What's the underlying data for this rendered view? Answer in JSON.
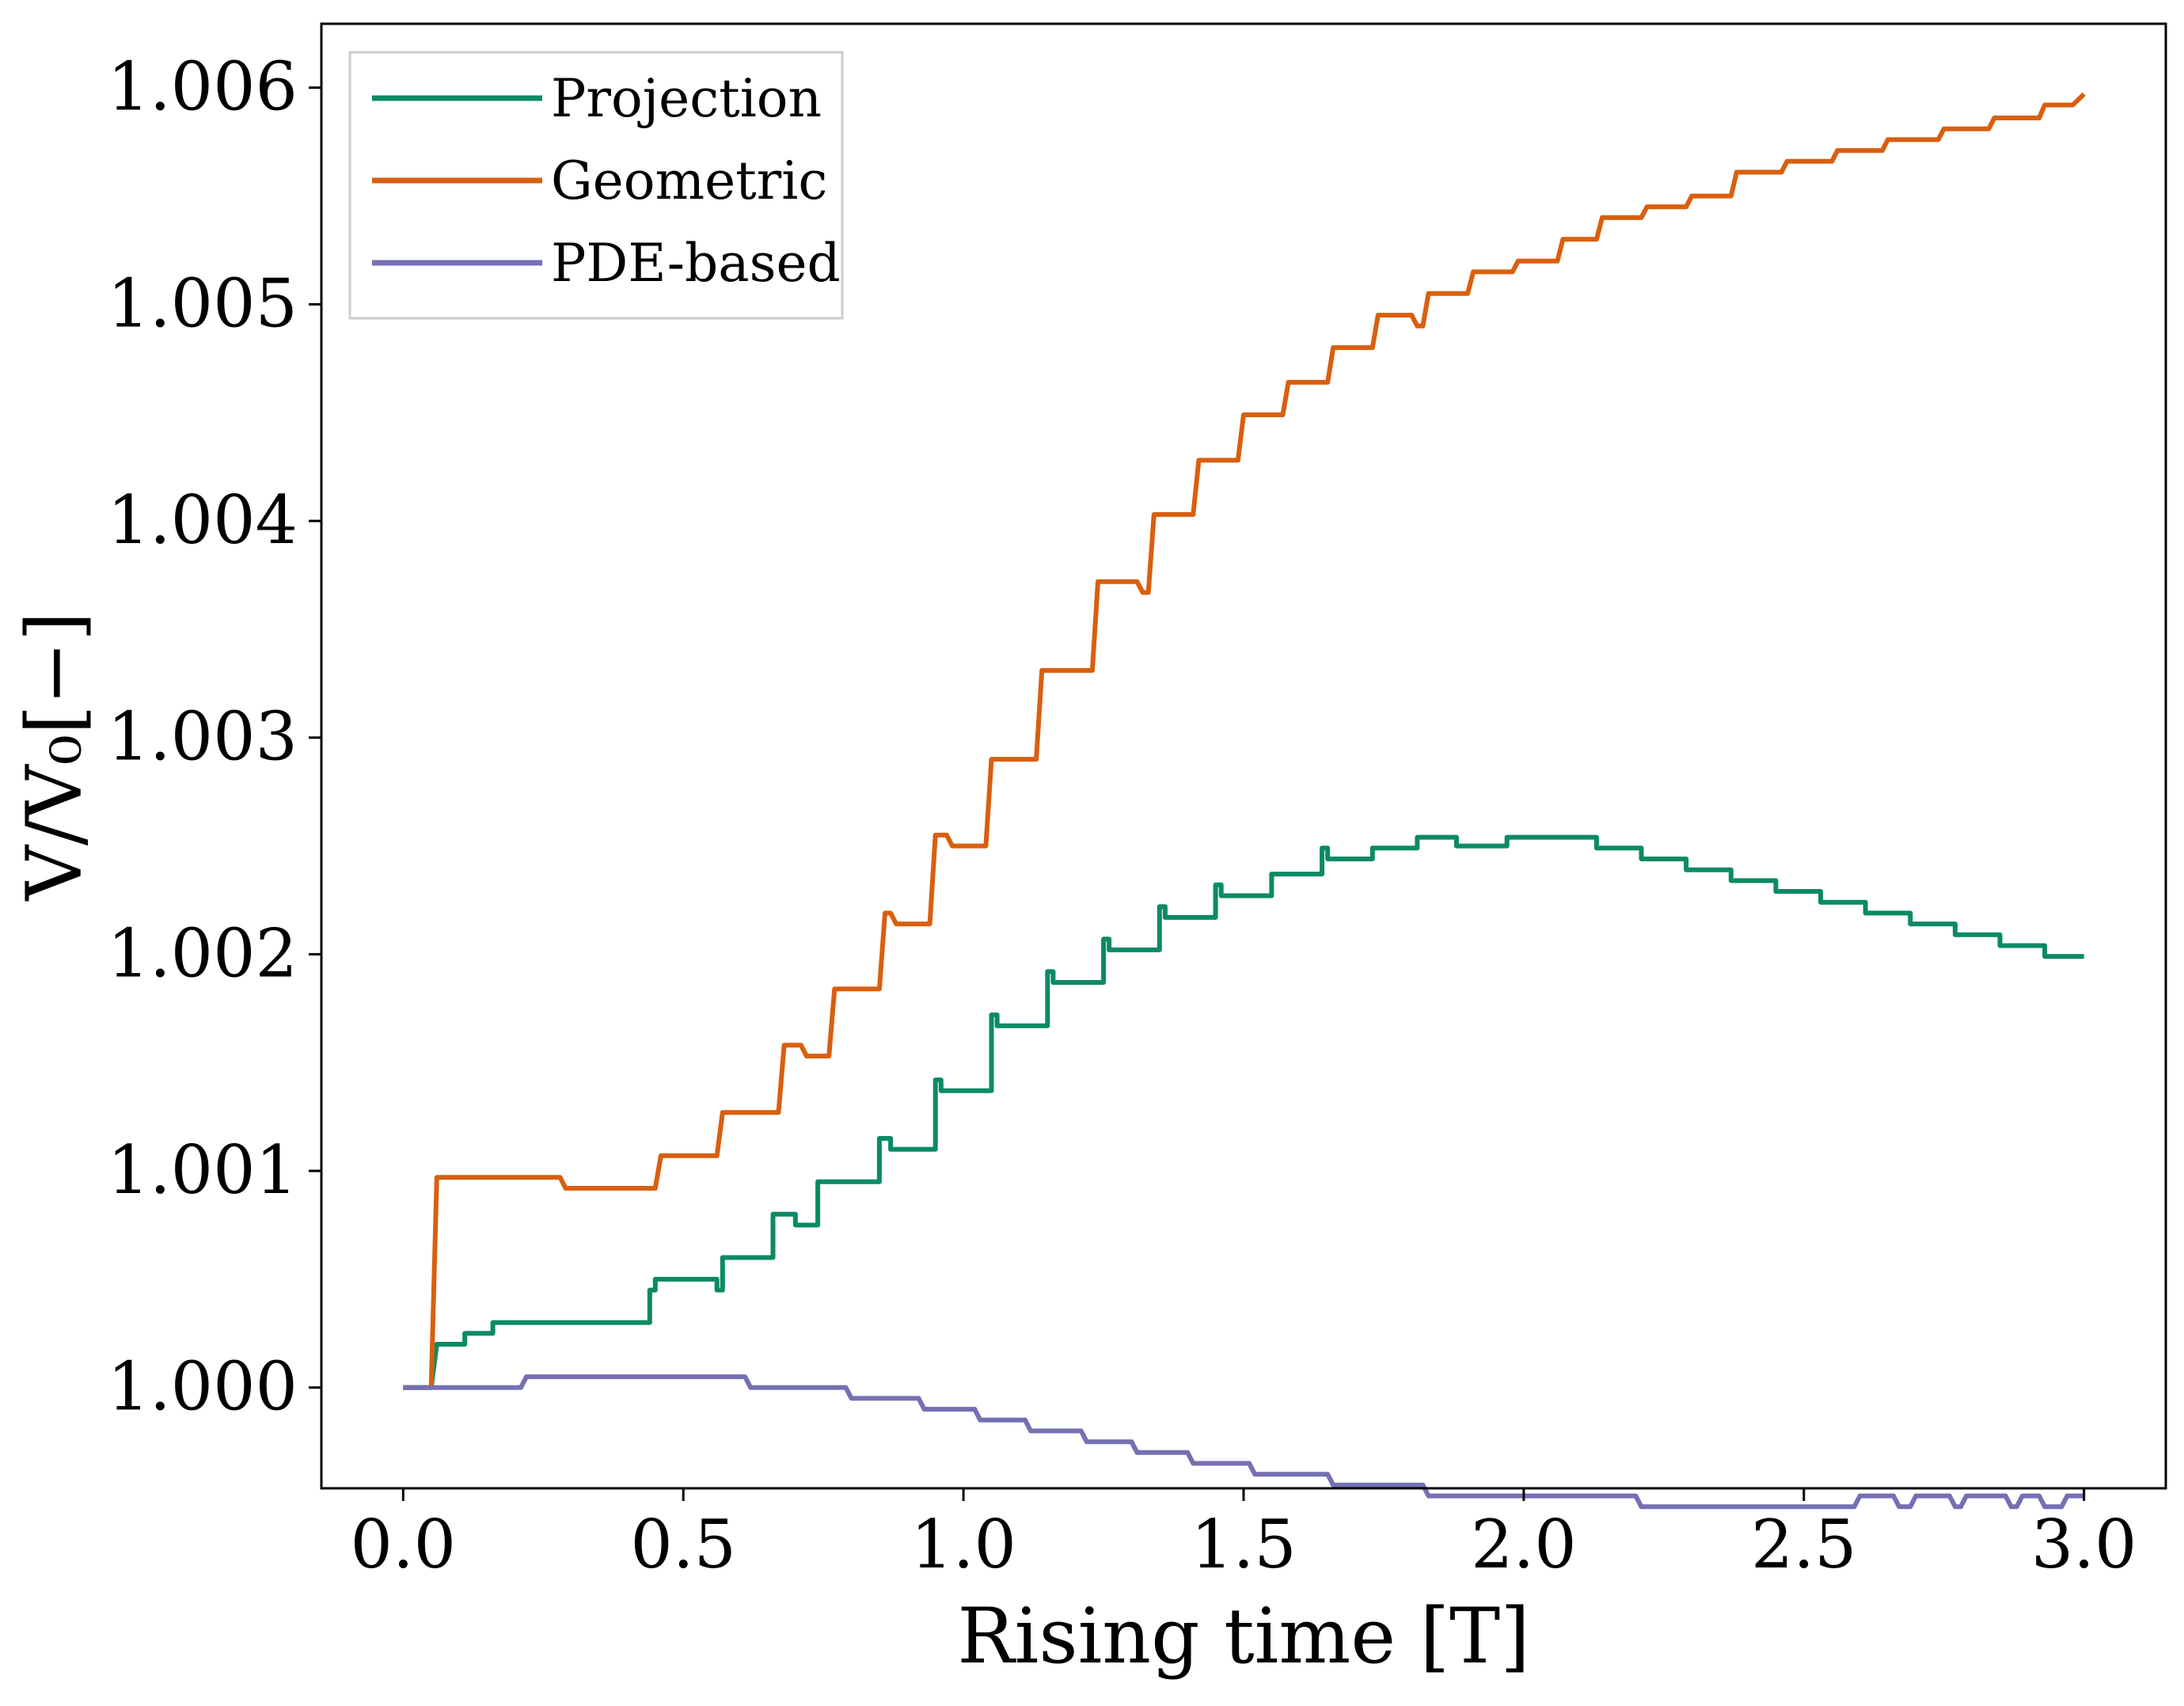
{
  "chart_data": {
    "type": "line",
    "title": "",
    "xlabel": "Rising time [T]",
    "ylabel": "V/V₀[−]",
    "xlim": [
      -0.146,
      3.146
    ],
    "ylim": [
      0.999535,
      1.006295
    ],
    "xticks": [
      0.0,
      0.5,
      1.0,
      1.5,
      2.0,
      2.5,
      3.0
    ],
    "xtick_labels": [
      "0.0",
      "0.5",
      "1.0",
      "1.5",
      "2.0",
      "2.5",
      "3.0"
    ],
    "yticks": [
      1.0,
      1.001,
      1.002,
      1.003,
      1.004,
      1.005,
      1.006
    ],
    "ytick_labels": [
      "1.000",
      "1.001",
      "1.002",
      "1.003",
      "1.004",
      "1.005",
      "1.006"
    ],
    "grid": false,
    "legend_position": "top-left",
    "series": [
      {
        "name": "Projection",
        "color": "#0b8a65",
        "x": [
          0.0,
          0.05,
          0.06,
          0.06,
          0.11,
          0.11,
          0.16,
          0.16,
          0.22,
          0.22,
          0.28,
          0.28,
          0.44,
          0.44,
          0.45,
          0.45,
          0.56,
          0.56,
          0.57,
          0.57,
          0.66,
          0.66,
          0.7,
          0.7,
          0.74,
          0.74,
          0.78,
          0.78,
          0.85,
          0.85,
          0.87,
          0.87,
          0.95,
          0.95,
          0.96,
          0.96,
          1.05,
          1.05,
          1.06,
          1.06,
          1.15,
          1.15,
          1.16,
          1.16,
          1.25,
          1.25,
          1.26,
          1.26,
          1.35,
          1.35,
          1.36,
          1.36,
          1.45,
          1.45,
          1.46,
          1.46,
          1.55,
          1.55,
          1.56,
          1.56,
          1.64,
          1.64,
          1.65,
          1.65,
          1.73,
          1.73,
          1.81,
          1.81,
          1.88,
          1.88,
          1.97,
          1.97,
          2.06,
          2.06,
          2.13,
          2.13,
          2.21,
          2.21,
          2.29,
          2.29,
          2.37,
          2.37,
          2.45,
          2.45,
          2.53,
          2.53,
          2.61,
          2.61,
          2.69,
          2.69,
          2.77,
          2.77,
          2.85,
          2.85,
          2.93,
          2.93,
          3.0
        ],
        "y": [
          1.0,
          1.0,
          1.0002,
          1.0002,
          1.0002,
          1.00025,
          1.00025,
          1.0003,
          1.0003,
          1.0003,
          1.0003,
          1.0003,
          1.0003,
          1.00045,
          1.00045,
          1.0005,
          1.0005,
          1.00045,
          1.00045,
          1.0006,
          1.0006,
          1.0008,
          1.0008,
          1.00075,
          1.00075,
          1.00095,
          1.00095,
          1.00095,
          1.00095,
          1.00115,
          1.00115,
          1.0011,
          1.0011,
          1.00142,
          1.00142,
          1.00137,
          1.00137,
          1.00172,
          1.00172,
          1.00167,
          1.00167,
          1.00192,
          1.00192,
          1.00187,
          1.00187,
          1.00207,
          1.00207,
          1.00202,
          1.00202,
          1.00222,
          1.00222,
          1.00217,
          1.00217,
          1.00232,
          1.00232,
          1.00227,
          1.00227,
          1.00237,
          1.00237,
          1.00237,
          1.00237,
          1.00249,
          1.00249,
          1.00244,
          1.00244,
          1.00249,
          1.00249,
          1.00254,
          1.00254,
          1.0025,
          1.0025,
          1.00254,
          1.00254,
          1.00254,
          1.00254,
          1.00249,
          1.00249,
          1.00244,
          1.00244,
          1.00239,
          1.00239,
          1.00234,
          1.00234,
          1.00229,
          1.00229,
          1.00224,
          1.00224,
          1.00219,
          1.00219,
          1.00214,
          1.00214,
          1.00209,
          1.00209,
          1.00204,
          1.00204,
          1.00199,
          1.00199
        ]
      },
      {
        "name": "Geometric",
        "color": "#d95f0e",
        "x": [
          0.0,
          0.05,
          0.06,
          0.28,
          0.29,
          0.45,
          0.46,
          0.56,
          0.57,
          0.67,
          0.68,
          0.71,
          0.72,
          0.76,
          0.77,
          0.85,
          0.86,
          0.87,
          0.88,
          0.94,
          0.95,
          0.97,
          0.98,
          1.04,
          1.05,
          1.13,
          1.14,
          1.23,
          1.24,
          1.31,
          1.32,
          1.33,
          1.34,
          1.41,
          1.42,
          1.49,
          1.5,
          1.57,
          1.58,
          1.65,
          1.66,
          1.73,
          1.74,
          1.8,
          1.81,
          1.82,
          1.83,
          1.9,
          1.91,
          1.98,
          1.99,
          2.06,
          2.07,
          2.13,
          2.14,
          2.21,
          2.22,
          2.29,
          2.3,
          2.37,
          2.38,
          2.46,
          2.47,
          2.55,
          2.56,
          2.64,
          2.65,
          2.74,
          2.75,
          2.83,
          2.84,
          2.92,
          2.93,
          2.98,
          3.0
        ],
        "y": [
          1.0,
          1.0,
          1.00097,
          1.00097,
          1.00092,
          1.00092,
          1.00107,
          1.00107,
          1.00127,
          1.00127,
          1.00158,
          1.00158,
          1.00153,
          1.00153,
          1.00184,
          1.00184,
          1.00219,
          1.00219,
          1.00214,
          1.00214,
          1.00255,
          1.00255,
          1.0025,
          1.0025,
          1.0029,
          1.0029,
          1.00331,
          1.00331,
          1.00372,
          1.00372,
          1.00367,
          1.00367,
          1.00403,
          1.00403,
          1.00428,
          1.00428,
          1.00449,
          1.00449,
          1.00464,
          1.00464,
          1.0048,
          1.0048,
          1.00495,
          1.00495,
          1.0049,
          1.0049,
          1.00505,
          1.00505,
          1.00515,
          1.00515,
          1.0052,
          1.0052,
          1.0053,
          1.0053,
          1.0054,
          1.0054,
          1.00545,
          1.00545,
          1.0055,
          1.0055,
          1.00561,
          1.00561,
          1.00566,
          1.00566,
          1.00571,
          1.00571,
          1.00576,
          1.00576,
          1.00581,
          1.00581,
          1.00586,
          1.00586,
          1.00592,
          1.00592,
          1.00597
        ]
      },
      {
        "name": "PDE-based",
        "color": "#7570b3",
        "x": [
          0.0,
          0.21,
          0.22,
          0.61,
          0.62,
          0.79,
          0.8,
          0.92,
          0.93,
          1.02,
          1.03,
          1.11,
          1.12,
          1.21,
          1.22,
          1.3,
          1.31,
          1.4,
          1.41,
          1.51,
          1.52,
          1.65,
          1.66,
          1.82,
          1.83,
          2.2,
          2.21,
          2.59,
          2.6,
          2.66,
          2.67,
          2.69,
          2.7,
          2.76,
          2.77,
          2.78,
          2.79,
          2.86,
          2.87,
          2.88,
          2.89,
          2.92,
          2.93,
          2.96,
          2.97,
          3.0
        ],
        "y": [
          1.0,
          1.0,
          1.00005,
          1.00005,
          1.0,
          1.0,
          0.99995,
          0.99995,
          0.9999,
          0.9999,
          0.99985,
          0.99985,
          0.9998,
          0.9998,
          0.99975,
          0.99975,
          0.9997,
          0.9997,
          0.99965,
          0.99965,
          0.9996,
          0.9996,
          0.99955,
          0.99955,
          0.9995,
          0.9995,
          0.99945,
          0.99945,
          0.9995,
          0.9995,
          0.99945,
          0.99945,
          0.9995,
          0.9995,
          0.99945,
          0.99945,
          0.9995,
          0.9995,
          0.99945,
          0.99945,
          0.9995,
          0.9995,
          0.99945,
          0.99945,
          0.9995,
          0.9995
        ]
      }
    ]
  }
}
